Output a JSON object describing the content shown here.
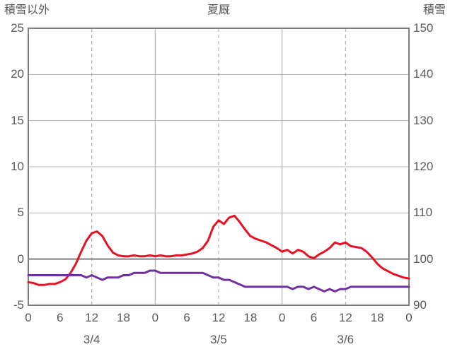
{
  "chart_data": {
    "type": "line",
    "title": "夏厩",
    "left_axis": {
      "label": "積雪以外",
      "min": -5,
      "max": 25,
      "ticks": [
        25,
        20,
        15,
        10,
        5,
        0,
        -5
      ],
      "zero_line": 0
    },
    "right_axis": {
      "label": "積雪",
      "min": 90,
      "max": 150,
      "ticks": [
        150,
        140,
        130,
        120,
        110,
        100,
        90
      ]
    },
    "x_axis": {
      "total_hours": 72,
      "tick_hours": [
        0,
        6,
        12,
        18,
        24,
        30,
        36,
        42,
        48,
        54,
        60,
        66,
        72
      ],
      "tick_labels": [
        "0",
        "6",
        "12",
        "18",
        "0",
        "6",
        "12",
        "18",
        "0",
        "6",
        "12",
        "18",
        "0"
      ],
      "day_labels": [
        {
          "label": "3/4",
          "hour": 12
        },
        {
          "label": "3/5",
          "hour": 36
        },
        {
          "label": "3/6",
          "hour": 60
        }
      ],
      "solid_gridline_hours": [
        24,
        48
      ],
      "dashed_gridline_hours": [
        12,
        36,
        60
      ]
    },
    "series": [
      {
        "name": "積雪以外",
        "axis": "left",
        "color": "#e81123",
        "sample_interval_hours": 1,
        "values": [
          -2.5,
          -2.6,
          -2.8,
          -2.8,
          -2.7,
          -2.7,
          -2.5,
          -2.2,
          -1.5,
          -0.5,
          0.8,
          2.0,
          2.8,
          3.0,
          2.5,
          1.5,
          0.7,
          0.4,
          0.3,
          0.3,
          0.4,
          0.3,
          0.3,
          0.4,
          0.3,
          0.4,
          0.3,
          0.3,
          0.4,
          0.4,
          0.5,
          0.6,
          0.8,
          1.2,
          2.0,
          3.5,
          4.2,
          3.8,
          4.5,
          4.7,
          4.0,
          3.2,
          2.5,
          2.2,
          2.0,
          1.8,
          1.5,
          1.2,
          0.8,
          1.0,
          0.6,
          1.0,
          0.8,
          0.3,
          0.1,
          0.5,
          0.8,
          1.2,
          1.8,
          1.6,
          1.8,
          1.4,
          1.3,
          1.2,
          0.8,
          0.2,
          -0.5,
          -1.0,
          -1.3,
          -1.6,
          -1.8,
          -2.0,
          -2.1
        ]
      },
      {
        "name": "積雪",
        "axis": "right",
        "color": "#7030a0",
        "sample_interval_hours": 1,
        "values": [
          96.5,
          96.5,
          96.5,
          96.5,
          96.5,
          96.5,
          96.5,
          96.5,
          96.5,
          96.5,
          96.5,
          96.0,
          96.5,
          96.0,
          95.5,
          96.0,
          96.0,
          96.0,
          96.5,
          96.5,
          97.0,
          97.0,
          97.0,
          97.5,
          97.5,
          97.0,
          97.0,
          97.0,
          97.0,
          97.0,
          97.0,
          97.0,
          97.0,
          97.0,
          96.5,
          96.0,
          96.0,
          95.5,
          95.5,
          95.0,
          94.5,
          94.0,
          94.0,
          94.0,
          94.0,
          94.0,
          94.0,
          94.0,
          94.0,
          94.0,
          93.5,
          94.0,
          94.0,
          93.5,
          94.0,
          93.5,
          93.0,
          93.5,
          93.0,
          93.5,
          93.5,
          94.0,
          94.0,
          94.0,
          94.0,
          94.0,
          94.0,
          94.0,
          94.0,
          94.0,
          94.0,
          94.0,
          94.0
        ]
      }
    ]
  },
  "styles": {
    "background": "#ffffff",
    "text_color": "#595959",
    "grid_color": "#b3b3b3",
    "vertical_grid_color": "#a6a6a6",
    "zero_line_color": "#7f7f7f",
    "border_color": "#7f7f7f",
    "series_red": "#e81123",
    "series_purple": "#7030a0"
  }
}
